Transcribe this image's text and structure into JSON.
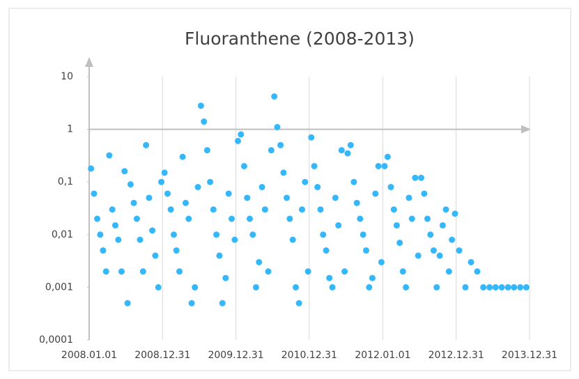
{
  "chart_data": {
    "type": "scatter",
    "title": "Fluoranthene (2008-2013)",
    "xlim": [
      "2008.01.01",
      "2013.12.31"
    ],
    "xticks": [
      "2008.01.01",
      "2008.12.31",
      "2009.12.31",
      "2010.12.31",
      "2012.01.01",
      "2012.12.31",
      "2013.12.31"
    ],
    "ylim": [
      0.0001,
      10
    ],
    "log_y": true,
    "yticks": [
      {
        "value": 0.0001,
        "label": "0,0001"
      },
      {
        "value": 0.001,
        "label": "0,001"
      },
      {
        "value": 0.01,
        "label": "0,01"
      },
      {
        "value": 0.1,
        "label": "0,1"
      },
      1,
      10
    ],
    "grid": true,
    "series": [
      {
        "color": "#35b7fb",
        "x": [
          "2008.01.10",
          "2008.01.25",
          "2008.02.10",
          "2008.02.25",
          "2008.03.10",
          "2008.03.25",
          "2008.04.10",
          "2008.04.25",
          "2008.05.10",
          "2008.05.25",
          "2008.06.10",
          "2008.06.25",
          "2008.07.10",
          "2008.07.25",
          "2008.08.10",
          "2008.08.25",
          "2008.09.10",
          "2008.09.25",
          "2008.10.10",
          "2008.10.25",
          "2008.11.10",
          "2008.11.25",
          "2008.12.10",
          "2008.12.25",
          "2009.01.10",
          "2009.01.25",
          "2009.02.10",
          "2009.02.25",
          "2009.03.10",
          "2009.03.25",
          "2009.04.10",
          "2009.04.25",
          "2009.05.10",
          "2009.05.25",
          "2009.06.10",
          "2009.06.25",
          "2009.07.10",
          "2009.07.25",
          "2009.08.10",
          "2009.08.25",
          "2009.09.10",
          "2009.09.25",
          "2009.10.10",
          "2009.10.25",
          "2009.11.10",
          "2009.11.25",
          "2009.12.10",
          "2009.12.25",
          "2010.01.10",
          "2010.01.25",
          "2010.02.10",
          "2010.02.25",
          "2010.03.10",
          "2010.03.25",
          "2010.04.10",
          "2010.04.25",
          "2010.05.10",
          "2010.05.25",
          "2010.06.10",
          "2010.06.25",
          "2010.07.10",
          "2010.07.25",
          "2010.08.10",
          "2010.08.25",
          "2010.09.10",
          "2010.09.25",
          "2010.10.10",
          "2010.10.25",
          "2010.11.10",
          "2010.11.25",
          "2010.12.10",
          "2010.12.25",
          "2011.01.10",
          "2011.01.25",
          "2011.02.10",
          "2011.02.25",
          "2011.03.10",
          "2011.03.25",
          "2011.04.10",
          "2011.04.25",
          "2011.05.10",
          "2011.05.25",
          "2011.06.10",
          "2011.06.25",
          "2011.07.10",
          "2011.07.25",
          "2011.08.10",
          "2011.08.25",
          "2011.09.10",
          "2011.09.25",
          "2011.10.10",
          "2011.10.25",
          "2011.11.10",
          "2011.11.25",
          "2011.12.10",
          "2011.12.25",
          "2012.01.10",
          "2012.01.25",
          "2012.02.10",
          "2012.02.25",
          "2012.03.10",
          "2012.03.25",
          "2012.04.10",
          "2012.04.25",
          "2012.05.10",
          "2012.05.25",
          "2012.06.10",
          "2012.06.25",
          "2012.07.10",
          "2012.07.25",
          "2012.08.10",
          "2012.08.25",
          "2012.09.10",
          "2012.09.25",
          "2012.10.10",
          "2012.10.25",
          "2012.11.10",
          "2012.11.25",
          "2012.12.10",
          "2012.12.25",
          "2013.01.15",
          "2013.02.15",
          "2013.03.15",
          "2013.04.15",
          "2013.05.15",
          "2013.06.15",
          "2013.07.15",
          "2013.08.15",
          "2013.09.15",
          "2013.10.15",
          "2013.11.15",
          "2013.12.15"
        ],
        "values": [
          0.18,
          0.06,
          0.02,
          0.01,
          0.005,
          0.002,
          0.32,
          0.03,
          0.015,
          0.008,
          0.002,
          0.16,
          0.0005,
          0.09,
          0.04,
          0.02,
          0.008,
          0.002,
          0.5,
          0.05,
          0.012,
          0.004,
          0.001,
          0.1,
          0.15,
          0.06,
          0.03,
          0.01,
          0.005,
          0.002,
          0.3,
          0.04,
          0.02,
          0.0005,
          0.001,
          0.08,
          2.8,
          1.4,
          0.4,
          0.1,
          0.03,
          0.01,
          0.004,
          0.0005,
          0.0015,
          0.06,
          0.02,
          0.008,
          0.6,
          0.8,
          0.2,
          0.05,
          0.02,
          0.01,
          0.001,
          0.003,
          0.08,
          0.03,
          0.002,
          0.4,
          4.2,
          1.1,
          0.5,
          0.15,
          0.05,
          0.02,
          0.008,
          0.001,
          0.0005,
          0.03,
          0.1,
          0.002,
          0.7,
          0.2,
          0.08,
          0.03,
          0.01,
          0.005,
          0.0015,
          0.001,
          0.05,
          0.015,
          0.4,
          0.002,
          0.35,
          0.5,
          0.1,
          0.04,
          0.02,
          0.01,
          0.005,
          0.001,
          0.0015,
          0.06,
          0.2,
          0.003,
          0.2,
          0.3,
          0.08,
          0.03,
          0.015,
          0.007,
          0.002,
          0.001,
          0.05,
          0.02,
          0.12,
          0.004,
          0.12,
          0.06,
          0.02,
          0.01,
          0.005,
          0.001,
          0.004,
          0.015,
          0.03,
          0.002,
          0.008,
          0.025,
          0.005,
          0.001,
          0.003,
          0.002,
          0.001,
          0.001,
          0.001,
          0.001,
          0.001,
          0.001,
          0.001,
          0.001
        ]
      }
    ]
  }
}
